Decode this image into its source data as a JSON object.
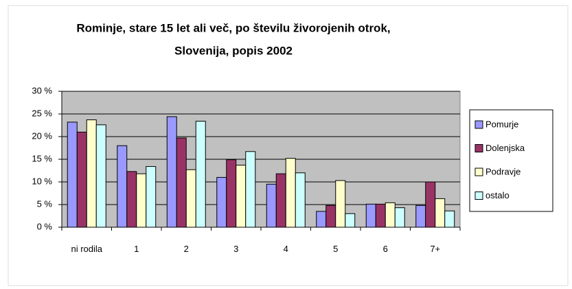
{
  "chart_data": {
    "type": "bar",
    "title": [
      "Rominje, stare 15 let ali več, po številu živorojenih otrok,",
      "Slovenija, popis 2002"
    ],
    "categories": [
      "ni rodila",
      "1",
      "2",
      "3",
      "4",
      "5",
      "6",
      "7+"
    ],
    "series": [
      {
        "name": "Pomurje",
        "color": "#9999ff",
        "values": [
          23.2,
          18,
          24.4,
          11,
          9.5,
          3.5,
          5.1,
          4.8
        ]
      },
      {
        "name": "Dolenjska",
        "color": "#993366",
        "values": [
          21,
          12.3,
          19.7,
          14.9,
          11.8,
          4.8,
          5.1,
          10
        ]
      },
      {
        "name": "Podravje",
        "color": "#ffffcc",
        "values": [
          23.7,
          11.8,
          12.7,
          13.7,
          15.2,
          10.3,
          5.4,
          6.3
        ]
      },
      {
        "name": "ostalo",
        "color": "#ccffff",
        "values": [
          22.6,
          13.4,
          23.4,
          16.7,
          12,
          3,
          4.3,
          3.6
        ]
      }
    ],
    "ylim": [
      0,
      30
    ],
    "yticks": [
      {
        "value": 0,
        "label": "0 %"
      },
      {
        "value": 5,
        "label": "5 %"
      },
      {
        "value": 10,
        "label": "10 %"
      },
      {
        "value": 15,
        "label": "15 %"
      },
      {
        "value": 20,
        "label": "20 %"
      },
      {
        "value": 25,
        "label": "25 %"
      },
      {
        "value": 30,
        "label": "30 %"
      }
    ],
    "grid": true,
    "legend": "right"
  }
}
